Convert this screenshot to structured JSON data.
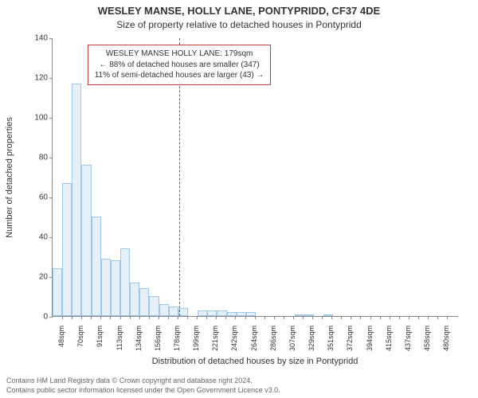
{
  "title_line1": "WESLEY MANSE, HOLLY LANE, PONTYPRIDD, CF37 4DE",
  "title_line2": "Size of property relative to detached houses in Pontypridd",
  "y_axis": {
    "label": "Number of detached properties",
    "min": 0,
    "max": 140,
    "step": 20
  },
  "x_axis": {
    "label": "Distribution of detached houses by size in Pontypridd",
    "min": 37.25,
    "max": 491.25,
    "tick_step": 21.5,
    "tick_labels": [
      "48sqm",
      "70sqm",
      "91sqm",
      "113sqm",
      "134sqm",
      "156sqm",
      "178sqm",
      "199sqm",
      "221sqm",
      "242sqm",
      "264sqm",
      "286sqm",
      "307sqm",
      "329sqm",
      "351sqm",
      "372sqm",
      "394sqm",
      "415sqm",
      "437sqm",
      "458sqm",
      "480sqm"
    ]
  },
  "bars": {
    "values": [
      24,
      67,
      117,
      76,
      50,
      29,
      28,
      34,
      17,
      14,
      10,
      6,
      5,
      4,
      0,
      3,
      3,
      3,
      2,
      2,
      2,
      0,
      0,
      0,
      0,
      1,
      1,
      0,
      1,
      0,
      0,
      0,
      0,
      0,
      0,
      0,
      0,
      0,
      0,
      0,
      0,
      0
    ]
  },
  "reference": {
    "x_value": 179,
    "box_lines": [
      "WESLEY MANSE HOLLY LANE: 179sqm",
      "← 88% of detached houses are smaller (347)",
      "11% of semi-detached houses are larger (43) →"
    ]
  },
  "style": {
    "bar_fill": "#e6f0fb",
    "bar_stroke": "#9ec8ee",
    "ref_color": "#c04040",
    "axis_color": "#888888",
    "text_color": "#333333",
    "background": "#ffffff",
    "title_fontsize": 13,
    "subtitle_fontsize": 12,
    "axis_label_fontsize": 11,
    "tick_fontsize": 10,
    "xtick_fontsize": 9
  },
  "footer": {
    "line1": "Contains HM Land Registry data © Crown copyright and database right 2024.",
    "line2": "Contains public sector information licensed under the Open Government Licence v3.0."
  }
}
